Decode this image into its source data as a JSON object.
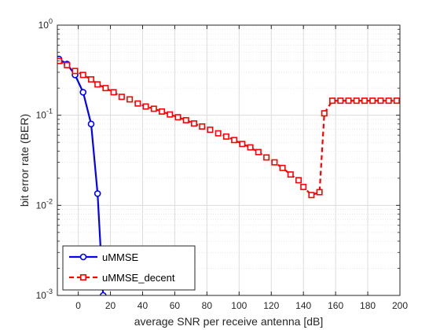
{
  "chart_data": {
    "type": "line",
    "xlabel": "average SNR per receive antenna [dB]",
    "ylabel": "bit error rate (BER)",
    "xlim": [
      -13,
      200
    ],
    "ylim": [
      0.001,
      1
    ],
    "yscale": "log",
    "x_ticks": [
      0,
      20,
      40,
      60,
      80,
      100,
      120,
      140,
      160,
      180,
      200
    ],
    "y_ticks": [
      {
        "value": 0.001,
        "base": "10",
        "exp": "-3"
      },
      {
        "value": 0.01,
        "base": "10",
        "exp": "-2"
      },
      {
        "value": 0.1,
        "base": "10",
        "exp": "-1"
      },
      {
        "value": 1,
        "base": "10",
        "exp": "0"
      }
    ],
    "grid": true,
    "legend_position": "bottom-left",
    "series": [
      {
        "name": "uMMSE",
        "color": "#0000ff",
        "line_style": "solid",
        "marker": "circle",
        "x": [
          -12,
          -7,
          -2,
          3,
          8,
          12,
          15.5
        ],
        "y": [
          0.42,
          0.37,
          0.28,
          0.18,
          0.08,
          0.0135,
          0.001
        ]
      },
      {
        "name": "uMMSE_decent",
        "color": "#ff0000",
        "line_style": "dashed",
        "marker": "square",
        "x": [
          -12,
          -7,
          -2,
          3,
          8,
          12,
          17,
          22,
          27,
          32,
          37,
          42,
          47,
          52,
          57,
          62,
          67,
          72,
          77,
          82,
          87,
          92,
          97,
          102,
          107,
          112,
          117,
          122,
          127,
          132,
          137,
          140,
          145,
          150,
          153,
          158,
          163,
          168,
          173,
          178,
          183,
          188,
          193,
          198
        ],
        "y": [
          0.4,
          0.36,
          0.31,
          0.28,
          0.25,
          0.22,
          0.2,
          0.18,
          0.16,
          0.15,
          0.135,
          0.125,
          0.118,
          0.11,
          0.102,
          0.095,
          0.088,
          0.081,
          0.075,
          0.069,
          0.063,
          0.058,
          0.053,
          0.048,
          0.044,
          0.039,
          0.034,
          0.03,
          0.026,
          0.022,
          0.019,
          0.016,
          0.013,
          0.014,
          0.105,
          0.145,
          0.145,
          0.145,
          0.145,
          0.145,
          0.145,
          0.145,
          0.145,
          0.145
        ]
      }
    ]
  }
}
